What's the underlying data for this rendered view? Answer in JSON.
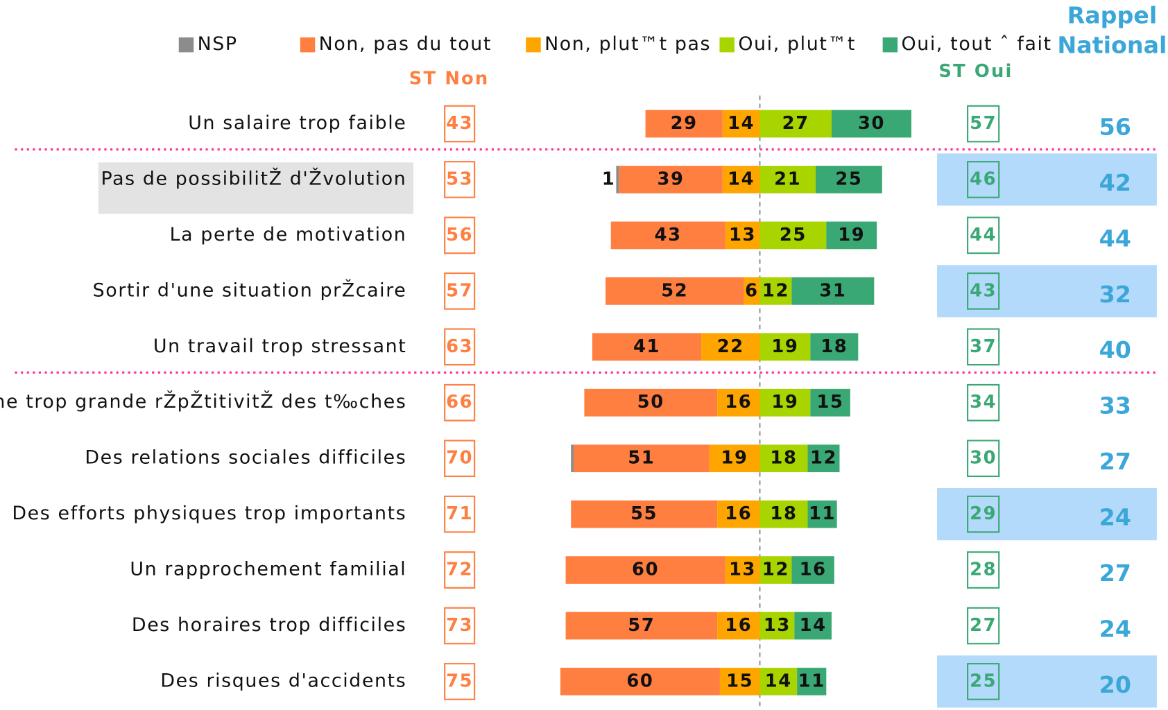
{
  "chart_data": {
    "type": "diverging_bar",
    "categories": [
      "Un salaire trop faible",
      "Pas de possibilitŽ d'Žvolution",
      "La perte de motivation",
      "Sortir d'une situation prŽcaire",
      "Un travail trop stressant",
      "Une trop grande rŽpŽtitivitŽ des t‰ches",
      "Des relations sociales difficiles",
      "Des efforts physiques trop importants",
      "Un rapprochement familial",
      "Des horaires trop difficiles",
      "Des risques d'accidents"
    ],
    "series": [
      {
        "name": "NSP",
        "color": "#8c8c8c",
        "values": [
          null,
          1,
          null,
          null,
          null,
          null,
          1,
          null,
          null,
          null,
          null
        ],
        "value_labels": [
          null,
          "1",
          null,
          null,
          null,
          null,
          null,
          null,
          null,
          null,
          null
        ]
      },
      {
        "name": "Non, pas du tout",
        "color": "#ff7f41",
        "values": [
          29,
          39,
          43,
          52,
          41,
          50,
          51,
          55,
          60,
          57,
          60
        ]
      },
      {
        "name": "Non, plut™t pas",
        "color": "#ffa500",
        "values": [
          14,
          14,
          13,
          6,
          22,
          16,
          19,
          16,
          13,
          16,
          15
        ]
      },
      {
        "name": "Oui, plut™t",
        "color": "#a8d400",
        "values": [
          27,
          21,
          25,
          12,
          19,
          19,
          18,
          18,
          12,
          13,
          14
        ]
      },
      {
        "name": "Oui, tout ˆ fait",
        "color": "#3aa874",
        "values": [
          30,
          25,
          19,
          31,
          18,
          15,
          12,
          11,
          16,
          14,
          11
        ]
      }
    ],
    "st_non": {
      "title": "ST Non",
      "color": "#ff7f41",
      "values": [
        43,
        53,
        56,
        57,
        63,
        66,
        70,
        71,
        72,
        73,
        75
      ]
    },
    "st_oui": {
      "title": "ST Oui",
      "color": "#3aa874",
      "values": [
        57,
        46,
        44,
        43,
        37,
        34,
        30,
        29,
        28,
        27,
        25
      ]
    },
    "rappel": {
      "title": [
        "Rappel",
        "National"
      ],
      "color": "#3ba7d8",
      "values": [
        56,
        42,
        44,
        32,
        40,
        33,
        27,
        24,
        27,
        24,
        20
      ]
    },
    "highlight_rows": [
      1,
      3,
      7,
      10
    ],
    "selected_category": 1,
    "separators_after": [
      0,
      4
    ]
  }
}
